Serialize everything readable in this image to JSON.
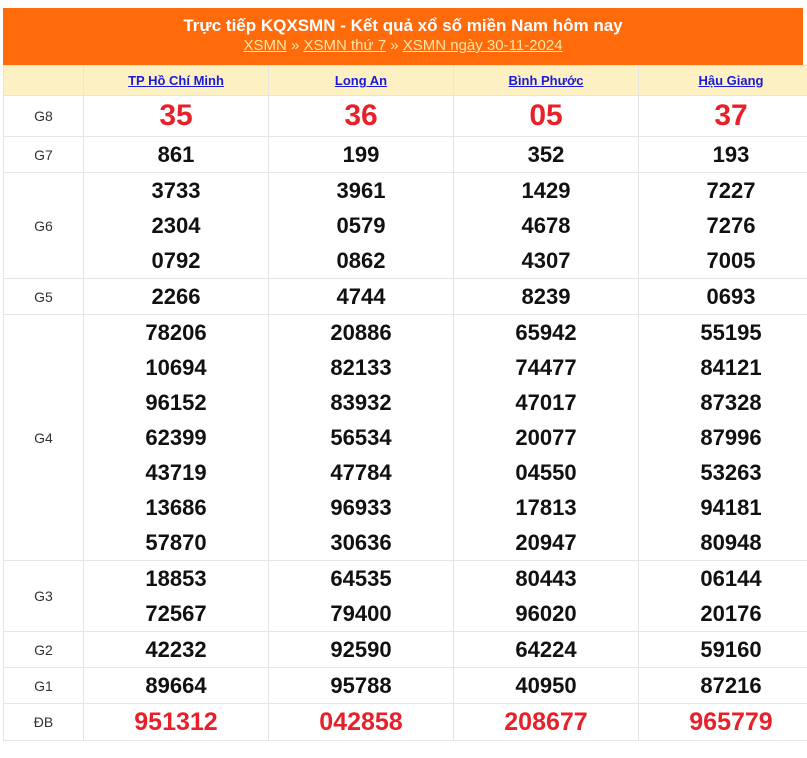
{
  "header": {
    "title": "Trực tiếp KQXSMN - Kết quả xổ số miền Nam hôm nay",
    "breadcrumb": [
      "XSMN",
      "XSMN thứ 7",
      "XSMN ngày 30-11-2024"
    ],
    "separator": "»"
  },
  "colors": {
    "banner": "#ff6a0a",
    "highlight": "#e8202a",
    "header_row": "#fdf1c4",
    "link": "#1a1adb"
  },
  "provinces": [
    "TP Hồ Chí Minh",
    "Long An",
    "Bình Phước",
    "Hậu Giang"
  ],
  "prizes": [
    {
      "label": "G8",
      "results": [
        [
          "35"
        ],
        [
          "36"
        ],
        [
          "05"
        ],
        [
          "37"
        ]
      ]
    },
    {
      "label": "G7",
      "results": [
        [
          "861"
        ],
        [
          "199"
        ],
        [
          "352"
        ],
        [
          "193"
        ]
      ]
    },
    {
      "label": "G6",
      "results": [
        [
          "3733",
          "2304",
          "0792"
        ],
        [
          "3961",
          "0579",
          "0862"
        ],
        [
          "1429",
          "4678",
          "4307"
        ],
        [
          "7227",
          "7276",
          "7005"
        ]
      ]
    },
    {
      "label": "G5",
      "results": [
        [
          "2266"
        ],
        [
          "4744"
        ],
        [
          "8239"
        ],
        [
          "0693"
        ]
      ]
    },
    {
      "label": "G4",
      "results": [
        [
          "78206",
          "10694",
          "96152",
          "62399",
          "43719",
          "13686",
          "57870"
        ],
        [
          "20886",
          "82133",
          "83932",
          "56534",
          "47784",
          "96933",
          "30636"
        ],
        [
          "65942",
          "74477",
          "47017",
          "20077",
          "04550",
          "17813",
          "20947"
        ],
        [
          "55195",
          "84121",
          "87328",
          "87996",
          "53263",
          "94181",
          "80948"
        ]
      ]
    },
    {
      "label": "G3",
      "results": [
        [
          "18853",
          "72567"
        ],
        [
          "64535",
          "79400"
        ],
        [
          "80443",
          "96020"
        ],
        [
          "06144",
          "20176"
        ]
      ]
    },
    {
      "label": "G2",
      "results": [
        [
          "42232"
        ],
        [
          "92590"
        ],
        [
          "64224"
        ],
        [
          "59160"
        ]
      ]
    },
    {
      "label": "G1",
      "results": [
        [
          "89664"
        ],
        [
          "95788"
        ],
        [
          "40950"
        ],
        [
          "87216"
        ]
      ]
    },
    {
      "label": "ĐB",
      "results": [
        [
          "951312"
        ],
        [
          "042858"
        ],
        [
          "208677"
        ],
        [
          "965779"
        ]
      ]
    }
  ]
}
